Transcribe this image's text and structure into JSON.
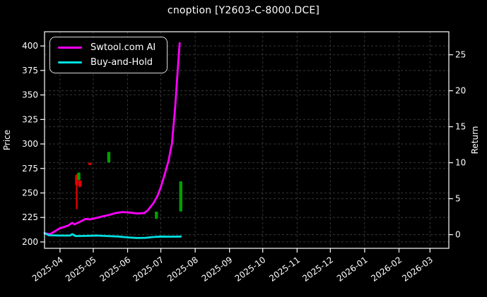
{
  "title": "cnoption [Y2603-C-8000.DCE]",
  "legend": [
    {
      "label": "Swtool.com AI",
      "color": "#ff00ff"
    },
    {
      "label": "Buy-and-Hold",
      "color": "#00e0e0"
    }
  ],
  "colors": {
    "background": "#000000",
    "text": "#ffffff",
    "frame": "#ffffff",
    "grid": "#3a3a3a",
    "series_ai": "#ff00ff",
    "series_hold": "#00e0e0",
    "candle_up_red": "#e60000",
    "candle_down_green": "#00a000"
  },
  "chart_data": {
    "type": "line",
    "title": "cnoption [Y2603-C-8000.DCE]",
    "grid": true,
    "legend_position": "upper left",
    "x_axis": {
      "label": "",
      "start_date": "2025-03-18",
      "end_date": "2026-03-18",
      "ticks": [
        "2025-04",
        "2025-05",
        "2025-06",
        "2025-07",
        "2025-08",
        "2025-09",
        "2025-10",
        "2025-11",
        "2025-12",
        "2026-01",
        "2026-02",
        "2026-03"
      ]
    },
    "y_left": {
      "label": "Price",
      "min": 193.5,
      "max": 414.5,
      "ticks": [
        200,
        225,
        250,
        275,
        300,
        325,
        350,
        375,
        400
      ]
    },
    "y_right": {
      "label": "Return",
      "min": -1.9,
      "max": 28.2,
      "ticks": [
        0,
        5,
        10,
        15,
        20,
        25
      ]
    },
    "series": [
      {
        "name": "Swtool.com AI",
        "color": "#ff00ff",
        "width": 2.8,
        "points": [
          [
            "2025-03-18",
            209
          ],
          [
            "2025-03-23",
            208
          ],
          [
            "2025-04-01",
            214
          ],
          [
            "2025-04-08",
            216.5
          ],
          [
            "2025-04-12",
            219.5
          ],
          [
            "2025-04-14",
            218
          ],
          [
            "2025-04-19",
            220.5
          ],
          [
            "2025-04-24",
            223.5
          ],
          [
            "2025-04-28",
            223
          ],
          [
            "2025-05-04",
            224.5
          ],
          [
            "2025-05-09",
            226
          ],
          [
            "2025-05-15",
            227.5
          ],
          [
            "2025-05-21",
            229.5
          ],
          [
            "2025-05-27",
            230.5
          ],
          [
            "2025-06-03",
            230
          ],
          [
            "2025-06-10",
            229
          ],
          [
            "2025-06-16",
            229.5
          ],
          [
            "2025-06-19",
            232
          ],
          [
            "2025-06-24",
            239
          ],
          [
            "2025-06-28",
            247
          ],
          [
            "2025-07-01",
            256
          ],
          [
            "2025-07-04",
            267
          ],
          [
            "2025-07-08",
            283
          ],
          [
            "2025-07-10",
            295
          ],
          [
            "2025-07-11",
            300
          ],
          [
            "2025-07-14",
            338
          ],
          [
            "2025-07-16",
            372
          ],
          [
            "2025-07-18",
            403
          ]
        ]
      },
      {
        "name": "Buy-and-Hold",
        "color": "#00e0e0",
        "width": 2.8,
        "points": [
          [
            "2025-03-18",
            209
          ],
          [
            "2025-03-22",
            206.8
          ],
          [
            "2025-04-01",
            206.5
          ],
          [
            "2025-04-10",
            206.5
          ],
          [
            "2025-04-12",
            208
          ],
          [
            "2025-04-15",
            206
          ],
          [
            "2025-04-24",
            206.2
          ],
          [
            "2025-05-04",
            206.5
          ],
          [
            "2025-05-14",
            206
          ],
          [
            "2025-05-24",
            205.5
          ],
          [
            "2025-06-02",
            204.6
          ],
          [
            "2025-06-10",
            204
          ],
          [
            "2025-06-17",
            204.2
          ],
          [
            "2025-06-24",
            205
          ],
          [
            "2025-07-01",
            205.5
          ],
          [
            "2025-07-10",
            205.4
          ],
          [
            "2025-07-19",
            205.5
          ]
        ]
      }
    ],
    "candles": [
      {
        "date": "2025-04-16",
        "color": "#e60000",
        "high": 269,
        "low": 233.5,
        "open": 268,
        "close": 258
      },
      {
        "date": "2025-04-18",
        "color": "#00a000",
        "high": 271,
        "low": 263,
        "open": 263.5,
        "close": 270.5
      },
      {
        "date": "2025-04-19",
        "color": "#e60000",
        "high": 263,
        "low": 256,
        "open": 262.5,
        "close": 256.5
      },
      {
        "date": "2025-04-28",
        "color": "#e60000",
        "high": 281,
        "low": 278.5,
        "open": 280.8,
        "close": 278.7
      },
      {
        "date": "2025-05-15",
        "color": "#00a000",
        "high": 292,
        "low": 281,
        "open": 281.3,
        "close": 291.7
      },
      {
        "date": "2025-06-27",
        "color": "#00a000",
        "high": 231,
        "low": 223.5,
        "open": 223.8,
        "close": 230.7
      },
      {
        "date": "2025-07-19",
        "color": "#00a000",
        "high": 262,
        "low": 231,
        "open": 231.3,
        "close": 261.7
      }
    ]
  }
}
